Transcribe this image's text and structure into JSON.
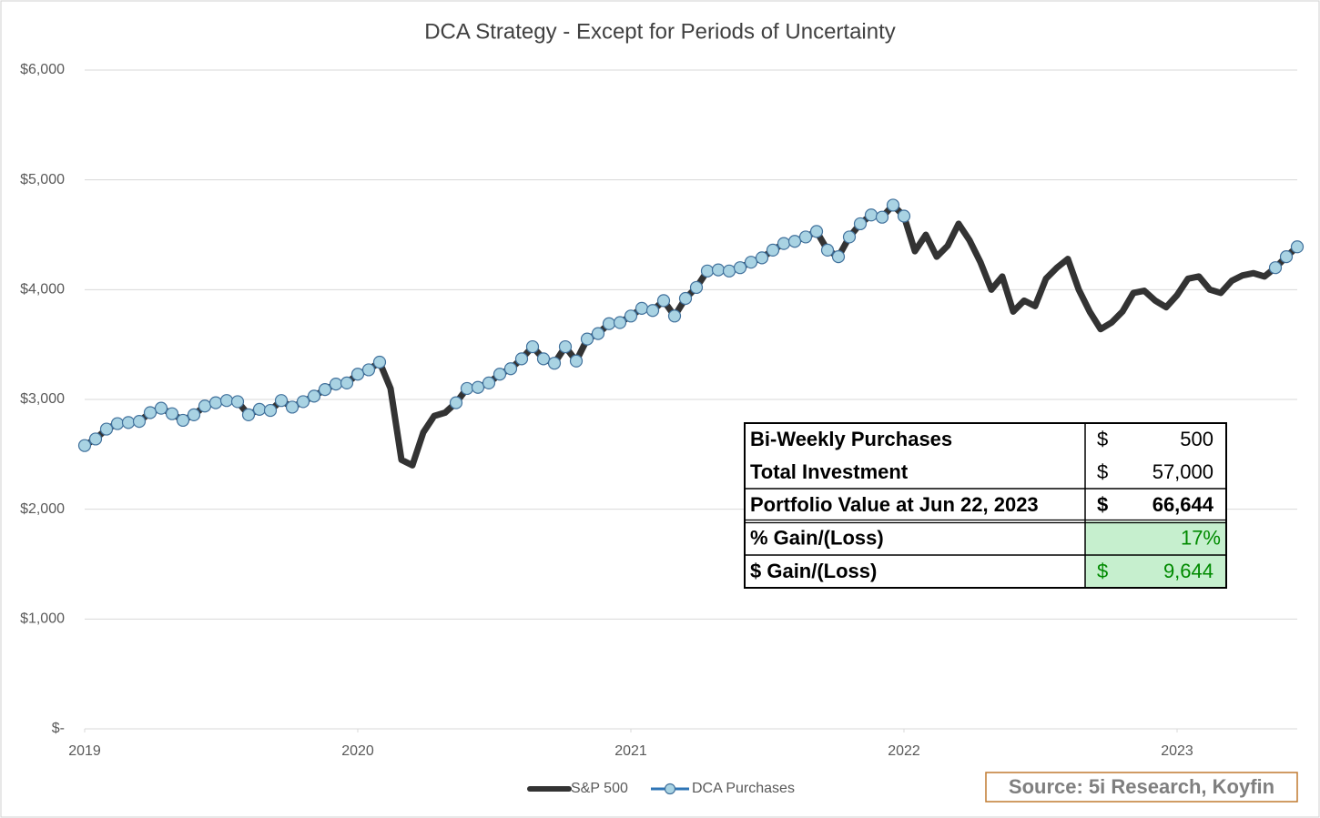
{
  "chart_data": {
    "type": "line",
    "title": "DCA Strategy - Except for Periods of Uncertainty",
    "x": [
      2019.0,
      2019.04,
      2019.08,
      2019.12,
      2019.16,
      2019.2,
      2019.24,
      2019.28,
      2019.32,
      2019.36,
      2019.4,
      2019.44,
      2019.48,
      2019.52,
      2019.56,
      2019.6,
      2019.64,
      2019.68,
      2019.72,
      2019.76,
      2019.8,
      2019.84,
      2019.88,
      2019.92,
      2019.96,
      2020.0,
      2020.04,
      2020.08,
      2020.12,
      2020.16,
      2020.2,
      2020.24,
      2020.28,
      2020.32,
      2020.36,
      2020.4,
      2020.44,
      2020.48,
      2020.52,
      2020.56,
      2020.6,
      2020.64,
      2020.68,
      2020.72,
      2020.76,
      2020.8,
      2020.84,
      2020.88,
      2020.92,
      2020.96,
      2021.0,
      2021.04,
      2021.08,
      2021.12,
      2021.16,
      2021.2,
      2021.24,
      2021.28,
      2021.32,
      2021.36,
      2021.4,
      2021.44,
      2021.48,
      2021.52,
      2021.56,
      2021.6,
      2021.64,
      2021.68,
      2021.72,
      2021.76,
      2021.8,
      2021.84,
      2021.88,
      2021.92,
      2021.96,
      2022.0,
      2022.04,
      2022.08,
      2022.12,
      2022.16,
      2022.2,
      2022.24,
      2022.28,
      2022.32,
      2022.36,
      2022.4,
      2022.44,
      2022.48,
      2022.52,
      2022.56,
      2022.6,
      2022.64,
      2022.68,
      2022.72,
      2022.76,
      2022.8,
      2022.84,
      2022.88,
      2022.92,
      2022.96,
      2023.0,
      2023.04,
      2023.08,
      2023.12,
      2023.16,
      2023.2,
      2023.24,
      2023.28,
      2023.32,
      2023.36,
      2023.4,
      2023.44
    ],
    "series": [
      {
        "name": "S&P 500",
        "color": "#333333",
        "values": [
          2580,
          2640,
          2730,
          2780,
          2790,
          2800,
          2880,
          2920,
          2870,
          2810,
          2860,
          2940,
          2970,
          2990,
          2980,
          2860,
          2910,
          2900,
          2990,
          2930,
          2980,
          3030,
          3090,
          3140,
          3150,
          3230,
          3270,
          3340,
          3100,
          2450,
          2400,
          2700,
          2850,
          2880,
          2970,
          3100,
          3110,
          3150,
          3230,
          3280,
          3370,
          3480,
          3370,
          3330,
          3480,
          3350,
          3550,
          3600,
          3690,
          3700,
          3760,
          3830,
          3810,
          3900,
          3760,
          3920,
          4020,
          4170,
          4180,
          4170,
          4200,
          4250,
          4290,
          4360,
          4420,
          4440,
          4480,
          4530,
          4360,
          4300,
          4480,
          4600,
          4680,
          4660,
          4770,
          4670,
          4350,
          4500,
          4300,
          4400,
          4600,
          4450,
          4250,
          4000,
          4120,
          3800,
          3900,
          3850,
          4100,
          4200,
          4280,
          4000,
          3800,
          3640,
          3700,
          3800,
          3970,
          3990,
          3900,
          3840,
          3950,
          4100,
          4120,
          4000,
          3970,
          4080,
          4130,
          4150,
          4120,
          4200,
          4300,
          4390
        ]
      },
      {
        "name": "DCA Purchases",
        "color": "#a9d3e3",
        "values": [
          2580,
          2640,
          2730,
          2780,
          2790,
          2800,
          2880,
          2920,
          2870,
          2810,
          2860,
          2940,
          2970,
          2990,
          2980,
          2860,
          2910,
          2900,
          2990,
          2930,
          2980,
          3030,
          3090,
          3140,
          3150,
          3230,
          3270,
          3340,
          null,
          null,
          null,
          null,
          null,
          null,
          2970,
          3100,
          3110,
          3150,
          3230,
          3280,
          3370,
          3480,
          3370,
          3330,
          3480,
          3350,
          3550,
          3600,
          3690,
          3700,
          3760,
          3830,
          3810,
          3900,
          3760,
          3920,
          4020,
          4170,
          4180,
          4170,
          4200,
          4250,
          4290,
          4360,
          4420,
          4440,
          4480,
          4530,
          4360,
          4300,
          4480,
          4600,
          4680,
          4660,
          4770,
          4670,
          null,
          null,
          null,
          null,
          null,
          null,
          null,
          null,
          null,
          null,
          null,
          null,
          null,
          null,
          null,
          null,
          null,
          null,
          null,
          null,
          null,
          null,
          null,
          null,
          null,
          null,
          null,
          null,
          null,
          null,
          null,
          null,
          null,
          4200,
          4300,
          4390
        ]
      }
    ],
    "xlim": [
      2019,
      2023.44
    ],
    "xticks": [
      2019,
      2020,
      2021,
      2022,
      2023
    ],
    "ylim": [
      0,
      6000
    ],
    "yticks": [
      {
        "value": 0,
        "label": "$-"
      },
      {
        "value": 1000,
        "label": "$1,000"
      },
      {
        "value": 2000,
        "label": "$2,000"
      },
      {
        "value": 3000,
        "label": "$3,000"
      },
      {
        "value": 4000,
        "label": "$4,000"
      },
      {
        "value": 5000,
        "label": "$5,000"
      },
      {
        "value": 6000,
        "label": "$6,000"
      }
    ],
    "grid": true,
    "legend": "bottom",
    "table": {
      "rows": [
        [
          "Bi-Weekly Purchases",
          "$",
          "500"
        ],
        [
          "Total Investment",
          "$",
          "57,000"
        ],
        [
          "Portfolio Value at Jun 22, 2023",
          "$",
          "66,644"
        ],
        [
          "% Gain/(Loss)",
          "17%"
        ],
        [
          "$ Gain/(Loss)",
          "$",
          "9,644"
        ]
      ]
    },
    "source": "Source: 5i Research, Koyfin"
  }
}
